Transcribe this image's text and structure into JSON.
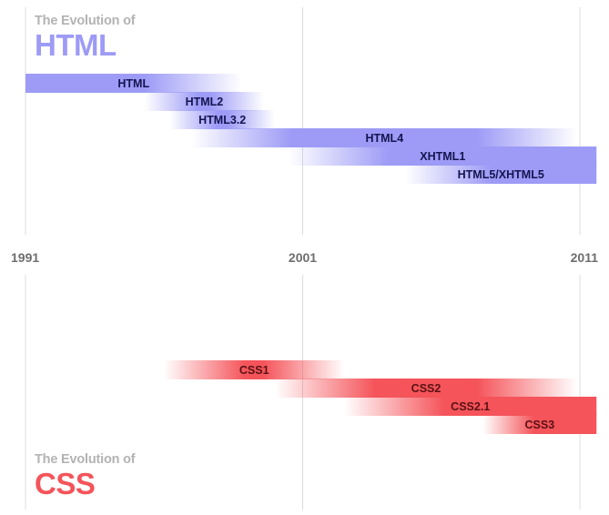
{
  "html_section": {
    "subtitle": "The Evolution of",
    "title": "HTML",
    "accent_color": "#9d9bf6",
    "bars": [
      {
        "label": "HTML",
        "start": 1991.0,
        "end": 1998.8,
        "fade_in": false,
        "fade_out": true
      },
      {
        "label": "HTML2",
        "start": 1995.3,
        "end": 1999.6,
        "fade_in": true,
        "fade_out": true
      },
      {
        "label": "HTML3.2",
        "start": 1996.2,
        "end": 2000.0,
        "fade_in": true,
        "fade_out": true
      },
      {
        "label": "HTML4",
        "start": 1997.0,
        "end": 2010.9,
        "fade_in": true,
        "fade_out": true
      },
      {
        "label": "XHTML1",
        "start": 2000.5,
        "end": 2011.6,
        "fade_in": true,
        "fade_out": false
      },
      {
        "label": "HTML5/XHTML5",
        "start": 2004.7,
        "end": 2011.6,
        "fade_in": true,
        "fade_out": false
      }
    ]
  },
  "css_section": {
    "subtitle": "The Evolution of",
    "title": "CSS",
    "accent_color": "#f4545a",
    "bars": [
      {
        "label": "CSS1",
        "start": 1996.0,
        "end": 2002.5,
        "fade_in": true,
        "fade_out": true
      },
      {
        "label": "CSS2",
        "start": 2000.0,
        "end": 2010.9,
        "fade_in": true,
        "fade_out": true
      },
      {
        "label": "CSS2.1",
        "start": 2002.5,
        "end": 2011.6,
        "fade_in": true,
        "fade_out": false
      },
      {
        "label": "CSS3",
        "start": 2007.5,
        "end": 2011.6,
        "fade_in": true,
        "fade_out": false
      }
    ]
  },
  "axis": {
    "ticks": [
      {
        "label": "1991",
        "year": 1991
      },
      {
        "label": "2001",
        "year": 2001
      },
      {
        "label": "2011",
        "year": 2011
      }
    ],
    "range": [
      1991,
      2011.6
    ]
  }
}
